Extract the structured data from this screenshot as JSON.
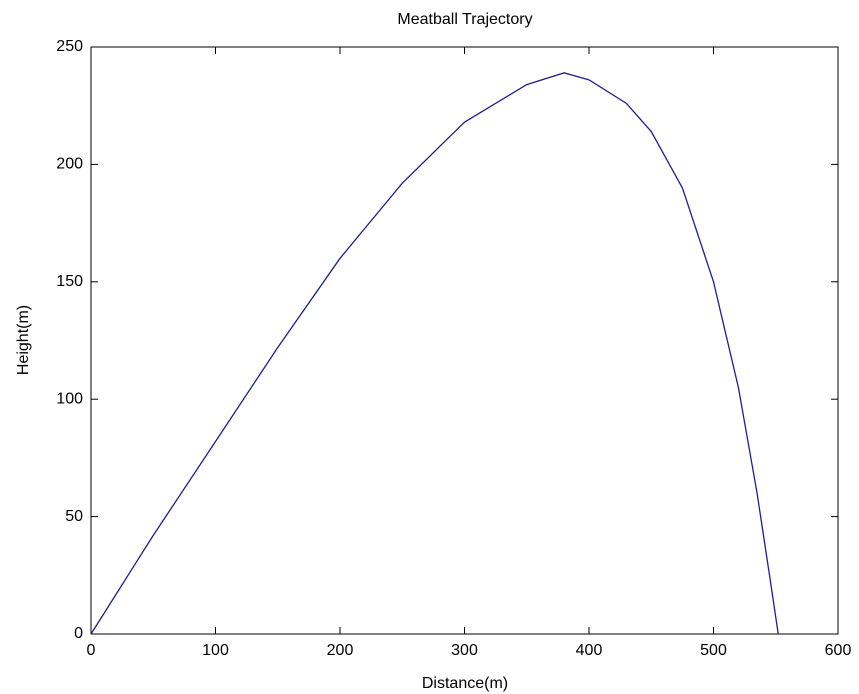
{
  "chart_data": {
    "type": "line",
    "title": "Meatball Trajectory",
    "xlabel": "Distance(m)",
    "ylabel": "Height(m)",
    "x": [
      0,
      50,
      100,
      150,
      200,
      250,
      300,
      350,
      380,
      400,
      430,
      450,
      475,
      500,
      520,
      535,
      545,
      552
    ],
    "series": [
      {
        "color": "#1f1f8f",
        "values": [
          0,
          42,
          82,
          122,
          160,
          192,
          218,
          234,
          239,
          236,
          226,
          214,
          190,
          150,
          105,
          60,
          25,
          0
        ]
      }
    ],
    "xlim": [
      0,
      600
    ],
    "ylim": [
      0,
      250
    ],
    "xticks": [
      0,
      100,
      200,
      300,
      400,
      500,
      600
    ],
    "yticks": [
      0,
      50,
      100,
      150,
      200,
      250
    ],
    "grid": false
  }
}
